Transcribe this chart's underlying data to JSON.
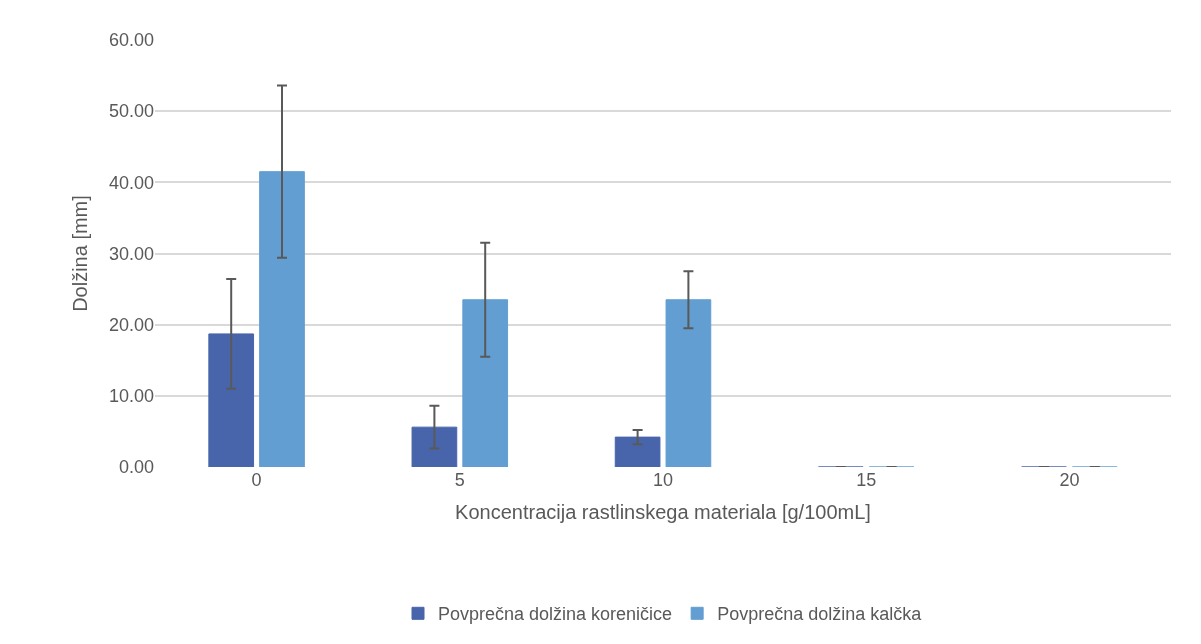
{
  "chart_data": {
    "type": "bar",
    "xlabel": "Koncentracija rastlinskega materiala [g/100mL]",
    "ylabel": "Dolžina [mm]",
    "categories": [
      "0",
      "5",
      "10",
      "15",
      "20"
    ],
    "series": [
      {
        "name": "Povprečna dolžina koreničice",
        "color": "#4865ab",
        "values": [
          18.7,
          5.6,
          4.2,
          0,
          0
        ],
        "errors": [
          7.7,
          3.0,
          1.0,
          0,
          0
        ]
      },
      {
        "name": "Povprečna dolžina kalčka",
        "color": "#629ed1",
        "values": [
          41.5,
          23.5,
          23.5,
          0,
          0
        ],
        "errors": [
          12.1,
          8.0,
          4.0,
          0,
          0
        ]
      }
    ],
    "ylim": [
      0,
      60
    ],
    "yticks": [
      {
        "value": 0,
        "label": "0.00"
      },
      {
        "value": 10,
        "label": "10.00"
      },
      {
        "value": 20,
        "label": "20.00"
      },
      {
        "value": 30,
        "label": "30.00"
      },
      {
        "value": 40,
        "label": "40.00"
      },
      {
        "value": 50,
        "label": "50.00"
      },
      {
        "value": 60,
        "label": "60.00"
      }
    ],
    "grid": "y",
    "legend": "bottom"
  }
}
